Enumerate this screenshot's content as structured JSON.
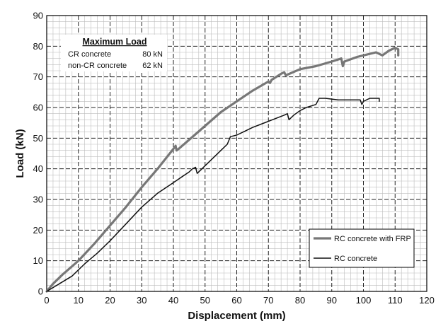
{
  "chart_data": {
    "type": "line",
    "title": "",
    "xlabel": "Displacement (mm)",
    "ylabel": "Load (kN)",
    "xlim": [
      0,
      120
    ],
    "ylim": [
      0,
      90
    ],
    "xticks": [
      "0",
      "10",
      "20",
      "30",
      "40",
      "50",
      "60",
      "70",
      "80",
      "90",
      "100",
      "110",
      "120"
    ],
    "yticks": [
      "0",
      "10",
      "20",
      "30",
      "40",
      "50",
      "60",
      "70",
      "80",
      "90"
    ],
    "grid": true,
    "legend_position": "bottom-right",
    "series": [
      {
        "name": "RC concrete with FRP",
        "color": "#777777",
        "points": [
          [
            0,
            0
          ],
          [
            2,
            2.5
          ],
          [
            5,
            5.5
          ],
          [
            10,
            10
          ],
          [
            15,
            15.5
          ],
          [
            20,
            21.5
          ],
          [
            25,
            27.5
          ],
          [
            30,
            34
          ],
          [
            35,
            40
          ],
          [
            40,
            46.5
          ],
          [
            40.7,
            47.5
          ],
          [
            41,
            46
          ],
          [
            42,
            46.8
          ],
          [
            45,
            49.5
          ],
          [
            50,
            54
          ],
          [
            55,
            58.5
          ],
          [
            60,
            62
          ],
          [
            65,
            65.5
          ],
          [
            70,
            68.5
          ],
          [
            70.5,
            68
          ],
          [
            71,
            69
          ],
          [
            74,
            71
          ],
          [
            75,
            71.5
          ],
          [
            75.5,
            70.5
          ],
          [
            80,
            72.5
          ],
          [
            85,
            73.5
          ],
          [
            90,
            75
          ],
          [
            93,
            76
          ],
          [
            93.5,
            73.5
          ],
          [
            94,
            75
          ],
          [
            98,
            76.5
          ],
          [
            100,
            77
          ],
          [
            104,
            78
          ],
          [
            105,
            77.5
          ],
          [
            106,
            77
          ],
          [
            108,
            78.5
          ],
          [
            110,
            79.5
          ],
          [
            111,
            79
          ],
          [
            111,
            77
          ]
        ]
      },
      {
        "name": "RC concrete",
        "color": "#111111",
        "points": [
          [
            0,
            0
          ],
          [
            4,
            2.5
          ],
          [
            8,
            5
          ],
          [
            12,
            9
          ],
          [
            16,
            12.5
          ],
          [
            20,
            16.5
          ],
          [
            25,
            22
          ],
          [
            30,
            27.5
          ],
          [
            35,
            32
          ],
          [
            40,
            35.5
          ],
          [
            45,
            39
          ],
          [
            46,
            40
          ],
          [
            47,
            40.5
          ],
          [
            47.5,
            38.5
          ],
          [
            50,
            41
          ],
          [
            52,
            43
          ],
          [
            55,
            46
          ],
          [
            57,
            48
          ],
          [
            58,
            50.5
          ],
          [
            60,
            51
          ],
          [
            62,
            52
          ],
          [
            65,
            53.5
          ],
          [
            70,
            55.5
          ],
          [
            75,
            57.5
          ],
          [
            76,
            58
          ],
          [
            76.5,
            56
          ],
          [
            78,
            57.5
          ],
          [
            80,
            59
          ],
          [
            82,
            60
          ],
          [
            85,
            61
          ],
          [
            86,
            63
          ],
          [
            88,
            63
          ],
          [
            92,
            62.5
          ],
          [
            96,
            62.5
          ],
          [
            99,
            62.5
          ],
          [
            99.5,
            61
          ],
          [
            100,
            62
          ],
          [
            102,
            63
          ],
          [
            105,
            63
          ],
          [
            105,
            62
          ]
        ]
      }
    ],
    "annotation": {
      "title": "Maximum Load",
      "rows": [
        {
          "label": "CR concrete",
          "value": "80 kN"
        },
        {
          "label": "non-CR concrete",
          "value": "62 kN"
        }
      ]
    }
  }
}
